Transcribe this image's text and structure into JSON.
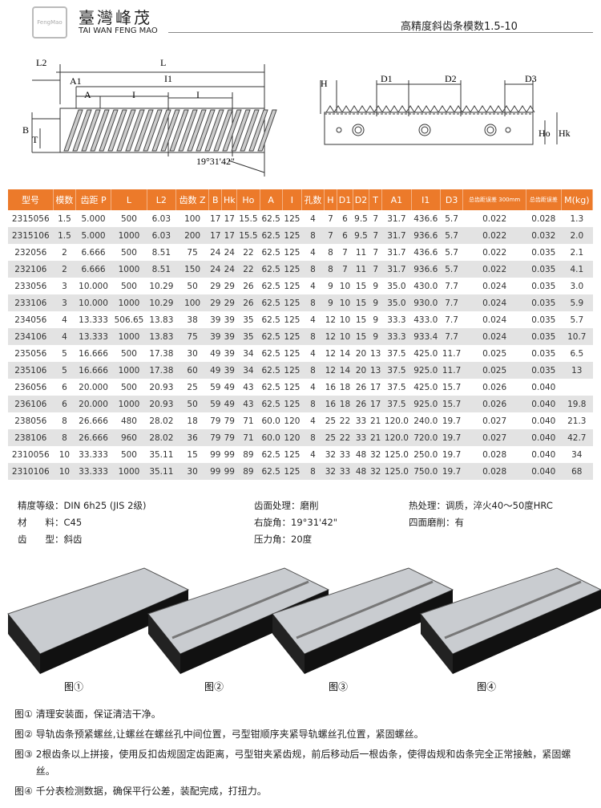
{
  "header": {
    "logo_small": "FengMao",
    "logo_cn": "臺灣峰茂",
    "logo_en": "TAI WAN FENG MAO",
    "title": "高精度斜齿条模数1.5-10"
  },
  "drawing": {
    "left": {
      "L2": "L2",
      "L": "L",
      "A1": "A1",
      "I1": "I1",
      "A": "A",
      "I_a": "I",
      "I_b": "I",
      "B": "B",
      "T": "T",
      "angle": "19°31'42\""
    },
    "right": {
      "H": "H",
      "D1": "D1",
      "D2": "D2",
      "D3": "D3",
      "Ho": "Ho",
      "Hk": "Hk"
    }
  },
  "table": {
    "headers": [
      "型号",
      "模数",
      "齿距 P",
      "L",
      "L2",
      "齿数 Z",
      "B",
      "Hk",
      "Ho",
      "A",
      "I",
      "孔数",
      "H",
      "D1",
      "D2",
      "T",
      "A1",
      "I1",
      "D3",
      "总齿距误差 300mm",
      "总齿距误差",
      "M(kg)"
    ],
    "rows": [
      [
        "2315056",
        "1.5",
        "5.000",
        "500",
        "6.03",
        "100",
        "17",
        "17",
        "15.5",
        "62.5",
        "125",
        "4",
        "7",
        "6",
        "9.5",
        "7",
        "31.7",
        "436.6",
        "5.7",
        "0.022",
        "0.028",
        "1.3"
      ],
      [
        "2315106",
        "1.5",
        "5.000",
        "1000",
        "6.03",
        "200",
        "17",
        "17",
        "15.5",
        "62.5",
        "125",
        "8",
        "7",
        "6",
        "9.5",
        "7",
        "31.7",
        "936.6",
        "5.7",
        "0.022",
        "0.032",
        "2.0"
      ],
      [
        "232056",
        "2",
        "6.666",
        "500",
        "8.51",
        "75",
        "24",
        "24",
        "22",
        "62.5",
        "125",
        "4",
        "8",
        "7",
        "11",
        "7",
        "31.7",
        "436.6",
        "5.7",
        "0.022",
        "0.035",
        "2.1"
      ],
      [
        "232106",
        "2",
        "6.666",
        "1000",
        "8.51",
        "150",
        "24",
        "24",
        "22",
        "62.5",
        "125",
        "8",
        "8",
        "7",
        "11",
        "7",
        "31.7",
        "936.6",
        "5.7",
        "0.022",
        "0.035",
        "4.1"
      ],
      [
        "233056",
        "3",
        "10.000",
        "500",
        "10.29",
        "50",
        "29",
        "29",
        "26",
        "62.5",
        "125",
        "4",
        "9",
        "10",
        "15",
        "9",
        "35.0",
        "430.0",
        "7.7",
        "0.024",
        "0.035",
        "3.0"
      ],
      [
        "233106",
        "3",
        "10.000",
        "1000",
        "10.29",
        "100",
        "29",
        "29",
        "26",
        "62.5",
        "125",
        "8",
        "9",
        "10",
        "15",
        "9",
        "35.0",
        "930.0",
        "7.7",
        "0.024",
        "0.035",
        "5.9"
      ],
      [
        "234056",
        "4",
        "13.333",
        "506.65",
        "13.83",
        "38",
        "39",
        "39",
        "35",
        "62.5",
        "125",
        "4",
        "12",
        "10",
        "15",
        "9",
        "33.3",
        "433.0",
        "7.7",
        "0.024",
        "0.035",
        "5.7"
      ],
      [
        "234106",
        "4",
        "13.333",
        "1000",
        "13.83",
        "75",
        "39",
        "39",
        "35",
        "62.5",
        "125",
        "8",
        "12",
        "10",
        "15",
        "9",
        "33.3",
        "933.4",
        "7.7",
        "0.024",
        "0.035",
        "10.7"
      ],
      [
        "235056",
        "5",
        "16.666",
        "500",
        "17.38",
        "30",
        "49",
        "39",
        "34",
        "62.5",
        "125",
        "4",
        "12",
        "14",
        "20",
        "13",
        "37.5",
        "425.0",
        "11.7",
        "0.025",
        "0.035",
        "6.5"
      ],
      [
        "235106",
        "5",
        "16.666",
        "1000",
        "17.38",
        "60",
        "49",
        "39",
        "34",
        "62.5",
        "125",
        "8",
        "12",
        "14",
        "20",
        "13",
        "37.5",
        "925.0",
        "11.7",
        "0.025",
        "0.035",
        "13"
      ],
      [
        "236056",
        "6",
        "20.000",
        "500",
        "20.93",
        "25",
        "59",
        "49",
        "43",
        "62.5",
        "125",
        "4",
        "16",
        "18",
        "26",
        "17",
        "37.5",
        "425.0",
        "15.7",
        "0.026",
        "0.040",
        null
      ],
      [
        "236106",
        "6",
        "20.000",
        "1000",
        "20.93",
        "50",
        "59",
        "49",
        "43",
        "62.5",
        "125",
        "8",
        "16",
        "18",
        "26",
        "17",
        "37.5",
        "925.0",
        "15.7",
        "0.026",
        "0.040",
        "19.8"
      ],
      [
        "238056",
        "8",
        "26.666",
        "480",
        "28.02",
        "18",
        "79",
        "79",
        "71",
        "60.0",
        "120",
        "4",
        "25",
        "22",
        "33",
        "21",
        "120.0",
        "240.0",
        "19.7",
        "0.027",
        "0.040",
        "21.3"
      ],
      [
        "238106",
        "8",
        "26.666",
        "960",
        "28.02",
        "36",
        "79",
        "79",
        "71",
        "60.0",
        "120",
        "8",
        "25",
        "22",
        "33",
        "21",
        "120.0",
        "720.0",
        "19.7",
        "0.027",
        "0.040",
        "42.7"
      ],
      [
        "2310056",
        "10",
        "33.333",
        "500",
        "35.11",
        "15",
        "99",
        "99",
        "89",
        "62.5",
        "125",
        "4",
        "32",
        "33",
        "48",
        "32",
        "125.0",
        "250.0",
        "19.7",
        "0.028",
        "0.040",
        "34"
      ],
      [
        "2310106",
        "10",
        "33.333",
        "1000",
        "35.11",
        "30",
        "99",
        "99",
        "89",
        "62.5",
        "125",
        "8",
        "32",
        "33",
        "48",
        "32",
        "125.0",
        "750.0",
        "19.7",
        "0.028",
        "0.040",
        "68"
      ]
    ]
  },
  "specs": [
    [
      "精度等级：DIN 6h25 (JIS 2级)",
      "材　　料：C45",
      "齿　　型：斜齿"
    ],
    [
      "齿面处理：磨削",
      "右旋角：19°31'42\"",
      "压力角：20度"
    ],
    [
      "热处理：调质，淬火40～50度HRC",
      "四面磨削：有"
    ]
  ],
  "figures": [
    "图①",
    "图②",
    "图③",
    "图④"
  ],
  "notes": [
    {
      "label": "图①",
      "text": "清理安装面，保证清洁干净。"
    },
    {
      "label": "图②",
      "text": "导轨齿条预紧螺丝,让螺丝在螺丝孔中间位置，弓型钳顺序夹紧导轨螺丝孔位置，紧固螺丝。"
    },
    {
      "label": "图③",
      "text": "2根齿条以上拼接，使用反扣齿规固定齿距离，弓型钳夹紧齿规，前后移动后一根齿条，使得齿规和齿条完全正常接触，紧固螺丝。"
    },
    {
      "label": "图④",
      "text": "千分表检测数据，确保平行公差，装配完成，打扭力。"
    }
  ]
}
